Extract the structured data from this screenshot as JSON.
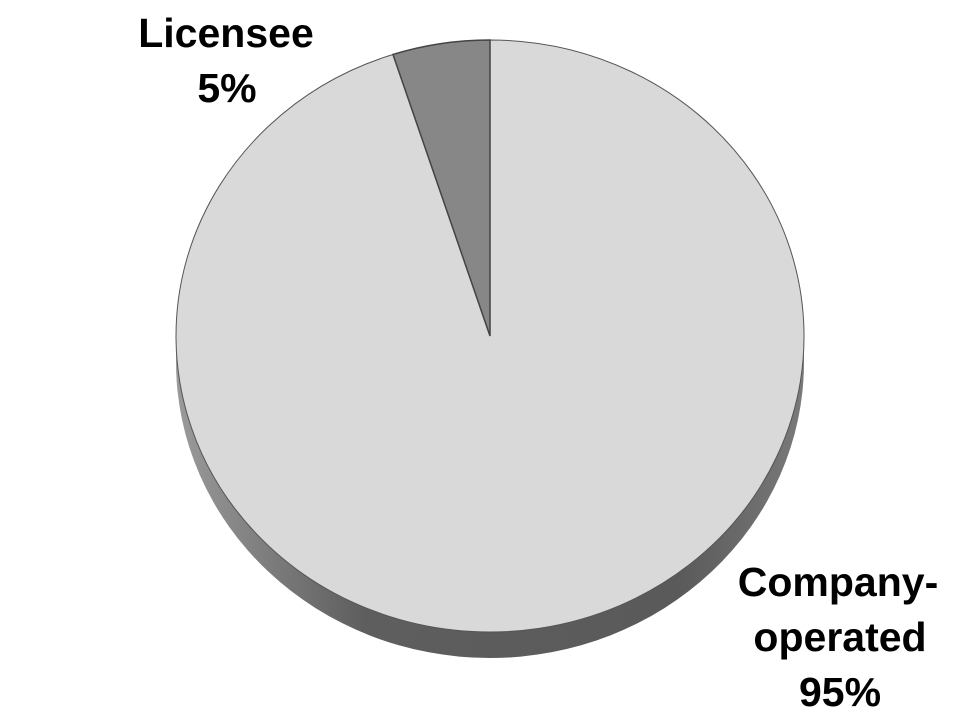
{
  "chart_data": {
    "type": "pie",
    "style": "3d",
    "title": "",
    "slices": [
      {
        "label": "Licensee",
        "value_label": "5%",
        "value": 5,
        "color": "#878787"
      },
      {
        "label": "Company-operated",
        "label_lines": [
          "Company-",
          "operated"
        ],
        "value_label": "95%",
        "value": 95,
        "color": "#d9d9d9"
      }
    ],
    "side_color": "#5c5c5c",
    "legend": "none"
  }
}
